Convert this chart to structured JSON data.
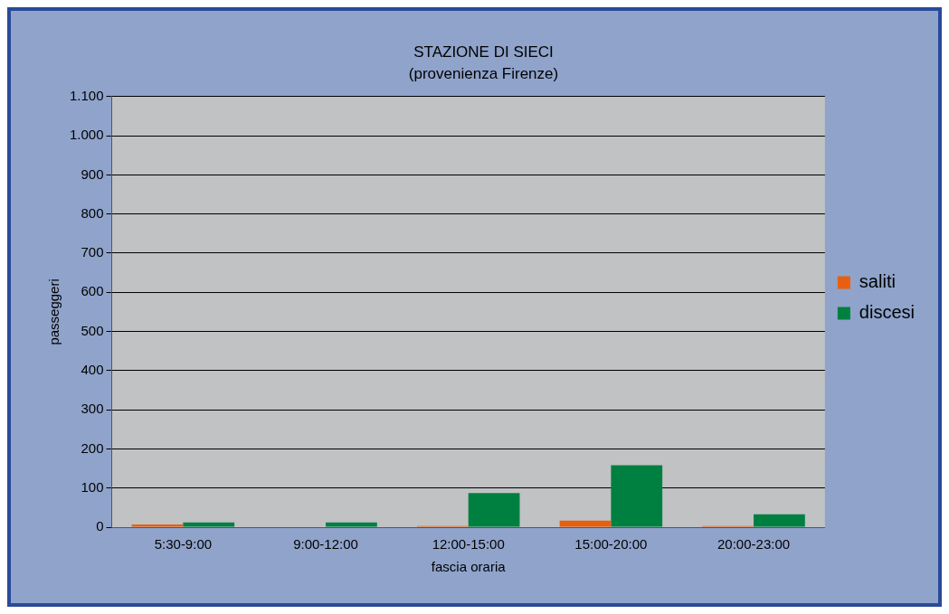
{
  "chart_data": {
    "type": "bar",
    "title": "STAZIONE DI SIECI",
    "subtitle": "(provenienza Firenze)",
    "xlabel": "fascia oraria",
    "ylabel": "passeggeri",
    "categories": [
      "5:30-9:00",
      "9:00-12:00",
      "12:00-15:00",
      "15:00-20:00",
      "20:00-23:00"
    ],
    "series": [
      {
        "name": "saliti",
        "color": "#e8600f",
        "values": [
          7,
          0,
          3,
          17,
          3
        ]
      },
      {
        "name": "discesi",
        "color": "#008040",
        "values": [
          12,
          12,
          87,
          158,
          33
        ]
      }
    ],
    "ylim": [
      0,
      1100
    ],
    "yticks": [
      0,
      100,
      200,
      300,
      400,
      500,
      600,
      700,
      800,
      900,
      {
        "value": 1000,
        "label": "1.000"
      },
      {
        "value": 1100,
        "label": "1.100"
      }
    ],
    "grid": "y",
    "legend": "right"
  }
}
